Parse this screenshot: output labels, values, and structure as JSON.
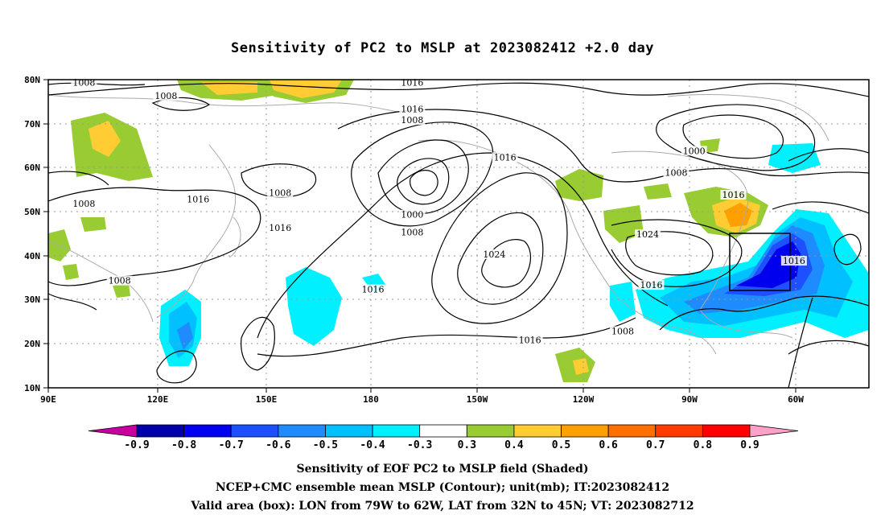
{
  "title": "Sensitivity of PC2 to MSLP at 2023082412 +2.0 day",
  "map": {
    "lat_labels": [
      "80N",
      "70N",
      "60N",
      "50N",
      "40N",
      "30N",
      "20N",
      "10N"
    ],
    "lon_labels": [
      "90E",
      "120E",
      "150E",
      "180",
      "150W",
      "120W",
      "90W",
      "60W"
    ],
    "contour_labels": [
      {
        "text": "1008",
        "lon": 100,
        "lat": 79
      },
      {
        "text": "1008",
        "lon": 123,
        "lat": 76
      },
      {
        "text": "1016",
        "lon": 192,
        "lat": 79
      },
      {
        "text": "1016",
        "lon": 192,
        "lat": 73
      },
      {
        "text": "1008",
        "lon": 192,
        "lat": 70.5
      },
      {
        "text": "1016",
        "lon": 218,
        "lat": 62
      },
      {
        "text": "1000",
        "lon": 271,
        "lat": 63.5
      },
      {
        "text": "1008",
        "lon": 266,
        "lat": 58.5
      },
      {
        "text": "1016",
        "lon": 282,
        "lat": 53.5
      },
      {
        "text": "1008",
        "lon": 100,
        "lat": 51.5
      },
      {
        "text": "1016",
        "lon": 132,
        "lat": 52.5
      },
      {
        "text": "1008",
        "lon": 155,
        "lat": 54
      },
      {
        "text": "1000",
        "lon": 192,
        "lat": 49
      },
      {
        "text": "1008",
        "lon": 192,
        "lat": 45
      },
      {
        "text": "1016",
        "lon": 155,
        "lat": 46
      },
      {
        "text": "1024",
        "lon": 215,
        "lat": 40
      },
      {
        "text": "1024",
        "lon": 258,
        "lat": 44.5
      },
      {
        "text": "1008",
        "lon": 110,
        "lat": 34
      },
      {
        "text": "1016",
        "lon": 181,
        "lat": 32
      },
      {
        "text": "1016",
        "lon": 259,
        "lat": 33
      },
      {
        "text": "1016",
        "lon": 299,
        "lat": 38.5
      },
      {
        "text": "1008",
        "lon": 251,
        "lat": 22.5
      },
      {
        "text": "1016",
        "lon": 225,
        "lat": 20.5
      }
    ],
    "box": {
      "lon_min": 281,
      "lon_max": 298,
      "lat_min": 32,
      "lat_max": 45
    },
    "colors": {
      "frame": "#000000",
      "grid": "#888888",
      "coast": "#aaaaaa",
      "contour": "#000000"
    }
  },
  "colorbar": {
    "ticks": [
      "-0.9",
      "-0.8",
      "-0.7",
      "-0.6",
      "-0.5",
      "-0.4",
      "-0.3",
      "0.3",
      "0.4",
      "0.5",
      "0.6",
      "0.7",
      "0.8",
      "0.9"
    ],
    "colors": [
      "#0000aa",
      "#0000ee",
      "#1e50ff",
      "#1e8cff",
      "#00c0ff",
      "#00f0ff",
      "#ffffff",
      "#99cc33",
      "#ffcc33",
      "#ffa000",
      "#ff6e00",
      "#ff3c00",
      "#ff0000"
    ],
    "low_arrow_color": "#c800a0",
    "high_arrow_color": "#ffa0c8"
  },
  "captions": {
    "line1": "Sensitivity of EOF PC2 to MSLP field (Shaded)",
    "line2": "NCEP+CMC ensemble mean MSLP (Contour); unit(mb); IT:2023082412",
    "line3": "Valid area (box): LON from 79W to 62W, LAT from 32N to 45N; VT: 2023082712"
  }
}
